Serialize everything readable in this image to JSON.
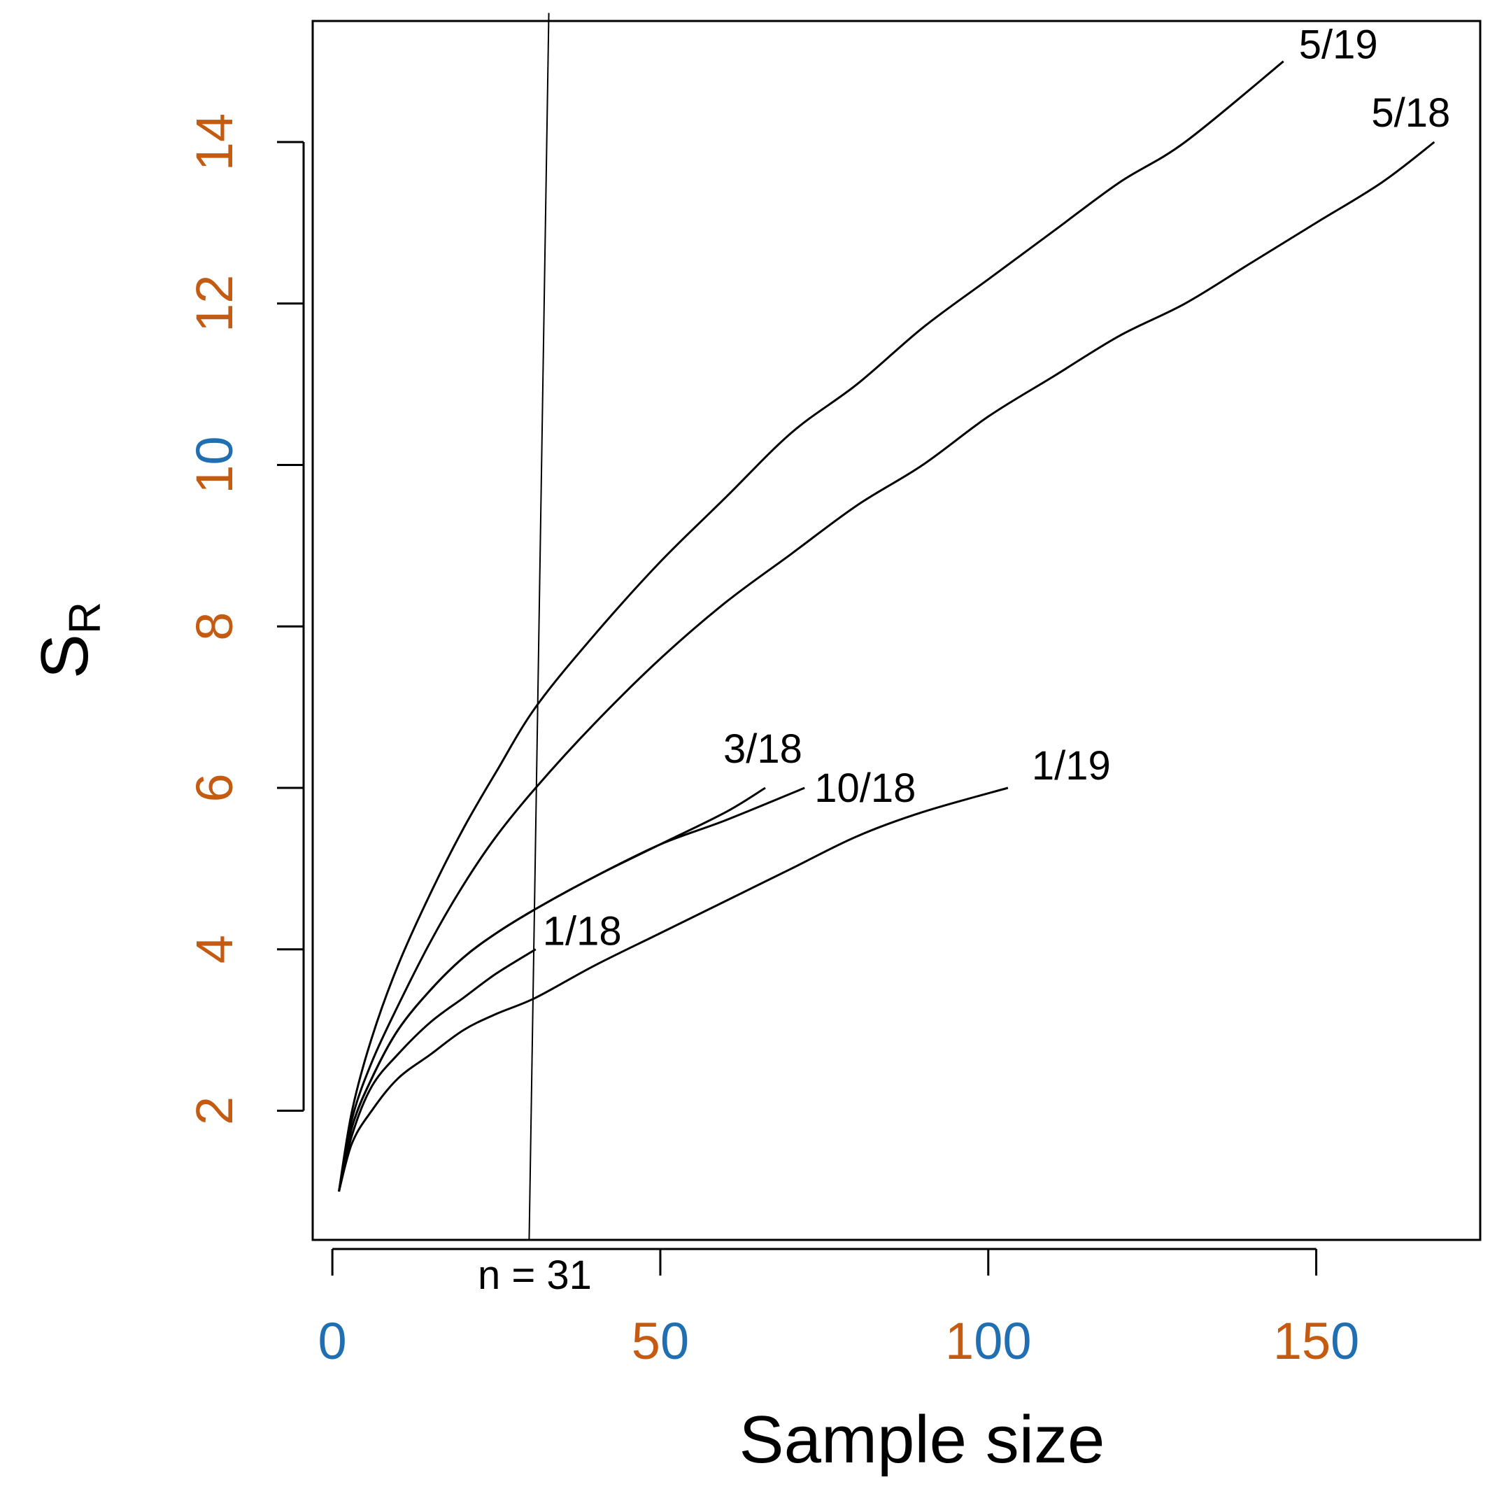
{
  "chart_data": {
    "type": "line",
    "title": "",
    "xlabel": "Sample size",
    "ylabel": "S",
    "ylabel_subscript": "R",
    "xlim": [
      -3,
      175
    ],
    "ylim": [
      0.4,
      15.5
    ],
    "xticks": [
      0,
      50,
      100,
      150
    ],
    "xtick_labels": [
      "0",
      "50",
      "100",
      "150"
    ],
    "yticks": [
      2,
      4,
      6,
      8,
      10,
      12,
      14
    ],
    "ytick_labels": [
      "2",
      "4",
      "6",
      "8",
      "10",
      "12",
      "14"
    ],
    "grid": false,
    "legend": "none",
    "tick_label_colors": {
      "digit": "#C55A11",
      "accent": "#1F6FB2"
    },
    "reference_line": {
      "label": "n = 31",
      "x_bottom": 30,
      "x_top": 33,
      "y_top": 15.6
    },
    "series": [
      {
        "name": "5/19",
        "x": [
          1,
          3,
          6,
          10,
          15,
          20,
          25,
          31,
          40,
          50,
          60,
          70,
          80,
          90,
          100,
          110,
          120,
          130,
          145
        ],
        "y": [
          1,
          2.0,
          2.9,
          3.8,
          4.7,
          5.5,
          6.2,
          7.0,
          7.9,
          8.8,
          9.6,
          10.4,
          11.0,
          11.7,
          12.3,
          12.9,
          13.5,
          14.0,
          15.0
        ]
      },
      {
        "name": "5/18",
        "x": [
          1,
          3,
          6,
          10,
          15,
          20,
          25,
          31,
          40,
          50,
          60,
          70,
          80,
          90,
          100,
          110,
          120,
          130,
          140,
          150,
          160,
          168
        ],
        "y": [
          1,
          1.9,
          2.6,
          3.3,
          4.1,
          4.8,
          5.4,
          6.0,
          6.8,
          7.6,
          8.3,
          8.9,
          9.5,
          10.0,
          10.6,
          11.1,
          11.6,
          12.0,
          12.5,
          13.0,
          13.5,
          14.0
        ]
      },
      {
        "name": "3/18",
        "x": [
          1,
          3,
          6,
          10,
          15,
          20,
          25,
          31,
          40,
          50,
          60,
          66
        ],
        "y": [
          1,
          1.8,
          2.4,
          3.0,
          3.5,
          3.9,
          4.2,
          4.5,
          4.9,
          5.3,
          5.7,
          6.0
        ]
      },
      {
        "name": "10/18",
        "x": [
          1,
          3,
          6,
          10,
          15,
          20,
          25,
          31,
          40,
          50,
          60,
          72
        ],
        "y": [
          1,
          1.8,
          2.4,
          3.0,
          3.5,
          3.9,
          4.2,
          4.5,
          4.9,
          5.3,
          5.6,
          6.0
        ]
      },
      {
        "name": "1/18",
        "x": [
          1,
          3,
          6,
          10,
          15,
          20,
          25,
          31
        ],
        "y": [
          1,
          1.7,
          2.3,
          2.7,
          3.1,
          3.4,
          3.7,
          4.0
        ]
      },
      {
        "name": "1/19",
        "x": [
          1,
          3,
          6,
          10,
          15,
          20,
          25,
          31,
          40,
          50,
          60,
          70,
          80,
          90,
          103
        ],
        "y": [
          1,
          1.6,
          2.0,
          2.4,
          2.7,
          3.0,
          3.2,
          3.4,
          3.8,
          4.2,
          4.6,
          5.0,
          5.4,
          5.7,
          6.0
        ]
      }
    ]
  }
}
